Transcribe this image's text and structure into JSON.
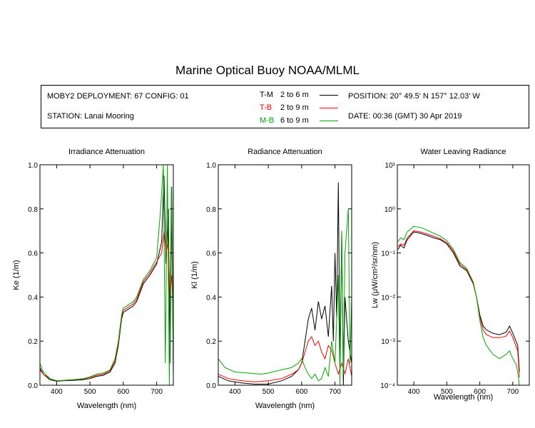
{
  "title": "Marine Optical Buoy NOAA/MLML",
  "info": {
    "deployment": "MOBY2 DEPLOYMENT: 67 CONFIG: 01",
    "station": "STATION: Lanai Mooring",
    "position": "POSITION: 20° 49.5' N   157° 12.03' W",
    "date": "DATE: 00:36 (GMT) 30 Apr 2019",
    "legend": [
      {
        "code": "T-M",
        "range": "2 to 6  m",
        "color": "#000000"
      },
      {
        "code": "T-B",
        "range": "2 to 9  m",
        "color": "#ff0000"
      },
      {
        "code": "M-B",
        "range": "6 to 9  m",
        "color": "#00aa00"
      }
    ]
  },
  "chart_data": [
    {
      "type": "line",
      "title": "Irradiance Attenuation",
      "xlabel": "Wavelength (nm)",
      "ylabel": "Ke  (1/m)",
      "xlim": [
        350,
        750
      ],
      "ylim": [
        0,
        1.0
      ],
      "xticks": [
        400,
        500,
        600,
        700
      ],
      "yticks": [
        0.0,
        0.2,
        0.4,
        0.6,
        0.8,
        1.0
      ],
      "ytick_labels": [
        "0.0",
        "0.2",
        "0.4",
        "0.6",
        "0.8",
        "1.0"
      ],
      "series": [
        {
          "color": "#000000",
          "points": [
            [
              350,
              0.08
            ],
            [
              360,
              0.05
            ],
            [
              380,
              0.025
            ],
            [
              400,
              0.018
            ],
            [
              420,
              0.02
            ],
            [
              450,
              0.022
            ],
            [
              480,
              0.025
            ],
            [
              500,
              0.03
            ],
            [
              520,
              0.04
            ],
            [
              540,
              0.045
            ],
            [
              560,
              0.06
            ],
            [
              575,
              0.1
            ],
            [
              585,
              0.18
            ],
            [
              595,
              0.3
            ],
            [
              600,
              0.33
            ],
            [
              610,
              0.34
            ],
            [
              630,
              0.36
            ],
            [
              640,
              0.38
            ],
            [
              650,
              0.42
            ],
            [
              660,
              0.46
            ],
            [
              680,
              0.5
            ],
            [
              700,
              0.55
            ],
            [
              715,
              0.65
            ],
            [
              722,
              0.95
            ],
            [
              728,
              0.55
            ],
            [
              735,
              0.8
            ],
            [
              740,
              0.1
            ],
            [
              745,
              0.9
            ],
            [
              750,
              0.05
            ]
          ]
        },
        {
          "color": "#ff0000",
          "points": [
            [
              350,
              0.07
            ],
            [
              360,
              0.05
            ],
            [
              380,
              0.03
            ],
            [
              400,
              0.02
            ],
            [
              420,
              0.022
            ],
            [
              450,
              0.025
            ],
            [
              480,
              0.028
            ],
            [
              500,
              0.035
            ],
            [
              520,
              0.045
            ],
            [
              540,
              0.05
            ],
            [
              560,
              0.065
            ],
            [
              575,
              0.11
            ],
            [
              585,
              0.19
            ],
            [
              595,
              0.31
            ],
            [
              600,
              0.34
            ],
            [
              610,
              0.35
            ],
            [
              630,
              0.37
            ],
            [
              640,
              0.39
            ],
            [
              650,
              0.43
            ],
            [
              660,
              0.47
            ],
            [
              680,
              0.51
            ],
            [
              700,
              0.56
            ],
            [
              715,
              0.6
            ],
            [
              722,
              0.7
            ],
            [
              728,
              0.6
            ],
            [
              735,
              0.65
            ],
            [
              740,
              0.4
            ],
            [
              745,
              0.5
            ],
            [
              750,
              0.3
            ]
          ]
        },
        {
          "color": "#00aa00",
          "points": [
            [
              350,
              0.1
            ],
            [
              360,
              0.06
            ],
            [
              380,
              0.03
            ],
            [
              400,
              0.02
            ],
            [
              420,
              0.022
            ],
            [
              450,
              0.025
            ],
            [
              480,
              0.03
            ],
            [
              500,
              0.038
            ],
            [
              520,
              0.05
            ],
            [
              540,
              0.055
            ],
            [
              560,
              0.07
            ],
            [
              575,
              0.12
            ],
            [
              585,
              0.2
            ],
            [
              595,
              0.32
            ],
            [
              600,
              0.35
            ],
            [
              610,
              0.36
            ],
            [
              630,
              0.38
            ],
            [
              640,
              0.4
            ],
            [
              650,
              0.44
            ],
            [
              660,
              0.48
            ],
            [
              680,
              0.52
            ],
            [
              700,
              0.58
            ],
            [
              712,
              0.8
            ],
            [
              720,
              1.0
            ],
            [
              726,
              0.1
            ],
            [
              732,
              1.0
            ],
            [
              738,
              0.0
            ],
            [
              744,
              0.9
            ],
            [
              750,
              0.05
            ]
          ]
        }
      ]
    },
    {
      "type": "line",
      "title": "Radiance Attenuation",
      "xlabel": "Wavelength (nm)",
      "ylabel": "Kl  (1/m)",
      "xlim": [
        350,
        750
      ],
      "ylim": [
        0,
        1.0
      ],
      "xticks": [
        400,
        500,
        600,
        700
      ],
      "yticks": [
        0.0,
        0.2,
        0.4,
        0.6,
        0.8,
        1.0
      ],
      "ytick_labels": [
        "0.0",
        "0.2",
        "0.4",
        "0.6",
        "0.8",
        "1.0"
      ],
      "series": [
        {
          "color": "#000000",
          "points": [
            [
              350,
              0.04
            ],
            [
              380,
              0.02
            ],
            [
              420,
              0.01
            ],
            [
              460,
              0.005
            ],
            [
              500,
              0.005
            ],
            [
              540,
              0.02
            ],
            [
              570,
              0.04
            ],
            [
              590,
              0.07
            ],
            [
              600,
              0.1
            ],
            [
              610,
              0.2
            ],
            [
              620,
              0.3
            ],
            [
              630,
              0.35
            ],
            [
              640,
              0.25
            ],
            [
              650,
              0.38
            ],
            [
              660,
              0.3
            ],
            [
              670,
              0.36
            ],
            [
              680,
              0.22
            ],
            [
              690,
              0.45
            ],
            [
              695,
              0.2
            ],
            [
              700,
              0.6
            ],
            [
              705,
              0.3
            ],
            [
              710,
              0.92
            ],
            [
              715,
              0.1
            ],
            [
              720,
              0.7
            ],
            [
              725,
              0.0
            ],
            [
              730,
              0.4
            ],
            [
              740,
              0.2
            ],
            [
              750,
              0.1
            ]
          ]
        },
        {
          "color": "#ff0000",
          "points": [
            [
              350,
              0.05
            ],
            [
              380,
              0.03
            ],
            [
              420,
              0.02
            ],
            [
              460,
              0.015
            ],
            [
              500,
              0.02
            ],
            [
              540,
              0.03
            ],
            [
              570,
              0.05
            ],
            [
              590,
              0.07
            ],
            [
              600,
              0.1
            ],
            [
              610,
              0.15
            ],
            [
              620,
              0.2
            ],
            [
              630,
              0.22
            ],
            [
              640,
              0.18
            ],
            [
              650,
              0.2
            ],
            [
              660,
              0.15
            ],
            [
              670,
              0.12
            ],
            [
              680,
              0.18
            ],
            [
              690,
              0.16
            ],
            [
              700,
              0.1
            ],
            [
              710,
              0.05
            ],
            [
              720,
              0.1
            ],
            [
              730,
              0.05
            ],
            [
              740,
              0.12
            ],
            [
              750,
              0.04
            ]
          ]
        },
        {
          "color": "#00aa00",
          "points": [
            [
              350,
              0.12
            ],
            [
              370,
              0.08
            ],
            [
              400,
              0.06
            ],
            [
              440,
              0.055
            ],
            [
              480,
              0.05
            ],
            [
              500,
              0.055
            ],
            [
              540,
              0.07
            ],
            [
              570,
              0.08
            ],
            [
              590,
              0.1
            ],
            [
              600,
              0.12
            ],
            [
              610,
              0.08
            ],
            [
              620,
              0.05
            ],
            [
              630,
              0.03
            ],
            [
              640,
              0.05
            ],
            [
              650,
              0.02
            ],
            [
              660,
              0.03
            ],
            [
              670,
              0.08
            ],
            [
              680,
              0.04
            ],
            [
              690,
              0.2
            ],
            [
              700,
              0.1
            ],
            [
              710,
              0.5
            ],
            [
              715,
              0.0
            ],
            [
              720,
              0.7
            ],
            [
              725,
              0.05
            ],
            [
              730,
              0.6
            ],
            [
              740,
              0.8
            ],
            [
              745,
              0.1
            ],
            [
              750,
              0.4
            ]
          ]
        }
      ]
    },
    {
      "type": "line",
      "title": "Water Leaving Radiance",
      "xlabel": "Wavelength (nm)",
      "ylabel": "Lw  (μW/cm²/sr/nm)",
      "xlim": [
        350,
        750
      ],
      "yscale": "log",
      "ylim": [
        0.0001,
        10
      ],
      "xticks": [
        400,
        500,
        600,
        700
      ],
      "yticks": [
        0.0001,
        0.001,
        0.01,
        0.1,
        1,
        10
      ],
      "ytick_labels": [
        "10⁻⁴",
        "10⁻³",
        "10⁻²",
        "10⁻¹",
        "10⁰",
        "10¹"
      ],
      "series": [
        {
          "color": "#000000",
          "points": [
            [
              352,
              0.12
            ],
            [
              360,
              0.15
            ],
            [
              370,
              0.13
            ],
            [
              380,
              0.2
            ],
            [
              400,
              0.3
            ],
            [
              420,
              0.28
            ],
            [
              440,
              0.25
            ],
            [
              460,
              0.22
            ],
            [
              480,
              0.2
            ],
            [
              500,
              0.16
            ],
            [
              520,
              0.1
            ],
            [
              540,
              0.05
            ],
            [
              560,
              0.04
            ],
            [
              580,
              0.02
            ],
            [
              590,
              0.01
            ],
            [
              600,
              0.004
            ],
            [
              610,
              0.0022
            ],
            [
              620,
              0.0018
            ],
            [
              640,
              0.0015
            ],
            [
              660,
              0.0014
            ],
            [
              680,
              0.0016
            ],
            [
              690,
              0.0022
            ],
            [
              700,
              0.0015
            ],
            [
              715,
              0.0008
            ],
            [
              720,
              0.0002
            ]
          ]
        },
        {
          "color": "#ff0000",
          "points": [
            [
              352,
              0.14
            ],
            [
              360,
              0.16
            ],
            [
              370,
              0.15
            ],
            [
              380,
              0.22
            ],
            [
              400,
              0.32
            ],
            [
              420,
              0.3
            ],
            [
              440,
              0.27
            ],
            [
              460,
              0.24
            ],
            [
              480,
              0.21
            ],
            [
              500,
              0.17
            ],
            [
              520,
              0.11
            ],
            [
              540,
              0.055
            ],
            [
              560,
              0.042
            ],
            [
              580,
              0.021
            ],
            [
              590,
              0.01
            ],
            [
              600,
              0.0035
            ],
            [
              610,
              0.0018
            ],
            [
              620,
              0.0014
            ],
            [
              640,
              0.0012
            ],
            [
              660,
              0.0012
            ],
            [
              680,
              0.0013
            ],
            [
              690,
              0.0017
            ],
            [
              700,
              0.0012
            ],
            [
              715,
              0.0006
            ],
            [
              720,
              0.00015
            ]
          ]
        },
        {
          "color": "#00aa00",
          "points": [
            [
              352,
              0.18
            ],
            [
              360,
              0.22
            ],
            [
              370,
              0.2
            ],
            [
              380,
              0.3
            ],
            [
              400,
              0.4
            ],
            [
              420,
              0.38
            ],
            [
              440,
              0.33
            ],
            [
              460,
              0.28
            ],
            [
              480,
              0.24
            ],
            [
              500,
              0.19
            ],
            [
              520,
              0.12
            ],
            [
              540,
              0.06
            ],
            [
              560,
              0.045
            ],
            [
              580,
              0.022
            ],
            [
              590,
              0.01
            ],
            [
              600,
              0.003
            ],
            [
              610,
              0.0012
            ],
            [
              620,
              0.0008
            ],
            [
              640,
              0.0005
            ],
            [
              660,
              0.0004
            ],
            [
              680,
              0.0005
            ],
            [
              690,
              0.0006
            ],
            [
              700,
              0.0004
            ],
            [
              710,
              0.0003
            ],
            [
              715,
              0.0002
            ],
            [
              720,
              0.0001
            ]
          ]
        }
      ]
    }
  ]
}
